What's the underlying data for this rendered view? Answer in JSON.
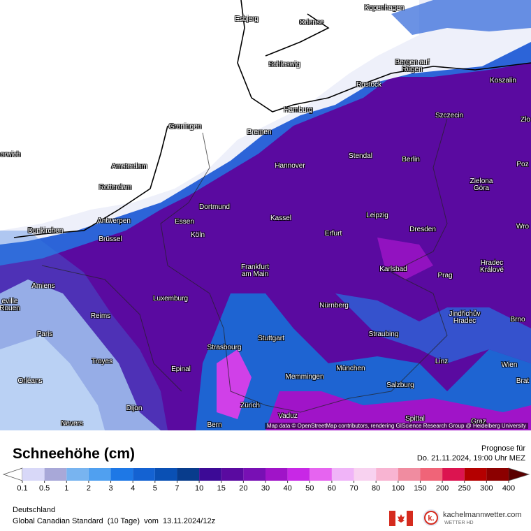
{
  "header": {
    "title": "Schneehöhe (cm)",
    "forecast_label": "Prognose für",
    "forecast_time": "Do. 21.11.2024, 19:00 Uhr MEZ"
  },
  "map": {
    "attribution": "Map data © OpenStreetMap contributors, rendering GIScience Research Group @ Heidelberg University",
    "cities": [
      "Esbjerg",
      "Odense",
      "Kopenhagen",
      "Schleswig",
      "Bergen auf Rügen",
      "Rostock",
      "Koszalin",
      "Hamburg",
      "Szczecin",
      "Zło",
      "Groningen",
      "Bremen",
      "orwich",
      "Amsterdam",
      "Hannover",
      "Stendal",
      "Berlin",
      "Poz",
      "Rotterdam",
      "Zielona Góra",
      "Dortmund",
      "Antwerpen",
      "Essen",
      "Kassel",
      "Leipzig",
      "Wro",
      "Dunkirchen",
      "Brüssel",
      "Köln",
      "Erfurt",
      "Dresden",
      "Frankfurt am Main",
      "Karlsbad",
      "Hradec Králové",
      "Amiens",
      "Prag",
      "eville Rouen",
      "Luxemburg",
      "Nürnberg",
      "Reims",
      "Jindřichův Hradec",
      "Brno",
      "Paris",
      "Straubing",
      "Stuttgart",
      "Strasbourg",
      "Troyes",
      "Epinal",
      "Linz",
      "Wien",
      "München",
      "Memmingen",
      "Orléans",
      "Salzburg",
      "Brat",
      "Dijon",
      "Zürich",
      "Vaduz",
      "Spittal",
      "Bern",
      "Nevers",
      "Graz"
    ]
  },
  "legend": {
    "ticks": [
      0.1,
      0.5,
      1,
      2,
      3,
      4,
      5,
      7,
      10,
      15,
      20,
      30,
      40,
      50,
      60,
      70,
      80,
      100,
      150,
      200,
      250,
      300,
      400
    ],
    "colors": [
      "#d8d8f8",
      "#a8a8d8",
      "#78b4f0",
      "#50a0f0",
      "#1e78e6",
      "#1462d2",
      "#0a50b4",
      "#083c8c",
      "#3c0a96",
      "#5a0aa0",
      "#7810b4",
      "#a014c8",
      "#c828e6",
      "#e664f0",
      "#f0b4f8",
      "#f8d2f0",
      "#f8b4d2",
      "#f08ca0",
      "#f06478",
      "#dc1450",
      "#b40000",
      "#8c0000"
    ],
    "under_color": "#ffffff",
    "over_color": "#5a0000"
  },
  "footer": {
    "region": "Deutschland",
    "model": "Global Canadian Standard  (10 Tage)  vom  13.11.2024/12z",
    "brand": "kachelmannwetter.com",
    "brand_sub": "WETTER HD"
  }
}
